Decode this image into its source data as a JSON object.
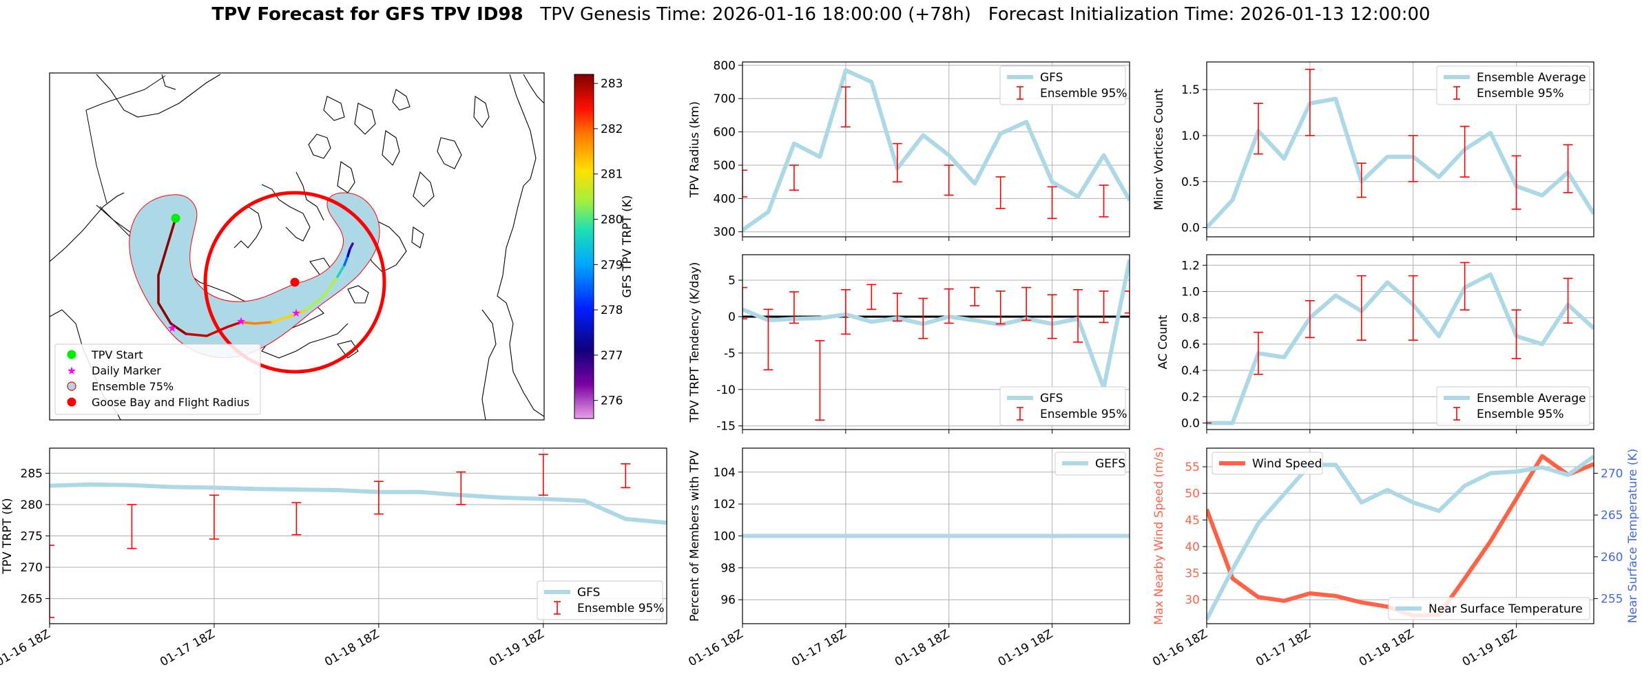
{
  "header": {
    "title_bold": "TPV Forecast for GFS TPV ID98",
    "title_rest": "TPV Genesis Time: 2026-01-16 18:00:00 (+78h)   Forecast Initialization Time: 2026-01-13 12:00:00"
  },
  "colors": {
    "gfs_line": "#add8e6",
    "error_bar": "#ff0000",
    "wind_line": "#ff6347",
    "temp_axis": "#4169e1",
    "grid": "#b0b0b0"
  },
  "x_tick_labels": [
    "01-16 18Z",
    "01-17 18Z",
    "01-18 18Z",
    "01-19 18Z"
  ],
  "map": {
    "colorbar_label": "GFS TPV TRPT (K)",
    "colorbar_ticks": [
      283,
      282,
      281,
      280,
      279,
      278,
      277,
      276
    ],
    "colorbar_range": [
      275.6,
      283.2
    ],
    "legend": [
      "TPV Start",
      "Daily Marker",
      "Ensemble 75%",
      "Goose Bay and Flight Radius"
    ],
    "legend_colors": [
      "#00ee00",
      "#ff00ff",
      "#ffffff",
      "#ff0000"
    ],
    "legend_icons": [
      "dot-marker-icon",
      "star-marker-icon",
      "ring-marker-icon",
      "dot-marker-icon"
    ]
  },
  "chart_data": [
    {
      "id": "radius",
      "type": "line",
      "ylabel": "TPV Radius (km)",
      "ylim": [
        285,
        810
      ],
      "yticks": [
        300,
        400,
        500,
        600,
        700,
        800
      ],
      "legend": [
        "GFS",
        "Ensemble 95%"
      ],
      "legend_pos": "top-right",
      "x": [
        0,
        0.25,
        0.5,
        0.75,
        1,
        1.25,
        1.5,
        1.75,
        2,
        2.25,
        2.5,
        2.75,
        3,
        3.25,
        3.5,
        3.75
      ],
      "series": [
        {
          "name": "GFS",
          "values": [
            305,
            360,
            565,
            525,
            785,
            750,
            490,
            590,
            530,
            445,
            595,
            630,
            450,
            405,
            530,
            395
          ]
        }
      ],
      "errorbars": [
        {
          "x": 0,
          "lo": 405,
          "hi": 485
        },
        {
          "x": 0.5,
          "lo": 425,
          "hi": 500
        },
        {
          "x": 1,
          "lo": 615,
          "hi": 735
        },
        {
          "x": 1.5,
          "lo": 450,
          "hi": 565
        },
        {
          "x": 2,
          "lo": 410,
          "hi": 500
        },
        {
          "x": 2.5,
          "lo": 370,
          "hi": 465
        },
        {
          "x": 3,
          "lo": 340,
          "hi": 435
        },
        {
          "x": 3.5,
          "lo": 345,
          "hi": 440
        }
      ]
    },
    {
      "id": "tendency",
      "type": "line",
      "ylabel": "TPV TRPT Tendency (K/day)",
      "ylim": [
        -15.5,
        8.5
      ],
      "yticks": [
        -15,
        -10,
        -5,
        0,
        5
      ],
      "zero_line": true,
      "legend": [
        "GFS",
        "Ensemble 95%"
      ],
      "legend_pos": "bottom-right",
      "x": [
        0,
        0.25,
        0.5,
        0.75,
        1,
        1.25,
        1.5,
        1.75,
        2,
        2.25,
        2.5,
        2.75,
        3,
        3.25,
        3.5,
        3.75
      ],
      "series": [
        {
          "name": "GFS",
          "values": [
            1,
            -0.5,
            -0.3,
            -0.2,
            0.3,
            -0.7,
            -0.2,
            -1,
            0,
            -0.5,
            -1.1,
            -0.3,
            -1,
            -0.3,
            -9.8,
            7.8
          ]
        }
      ],
      "errorbars": [
        {
          "x": 0,
          "lo": -0.3,
          "hi": 4
        },
        {
          "x": 0.25,
          "lo": -7.3,
          "hi": 1
        },
        {
          "x": 0.5,
          "lo": -0.9,
          "hi": 3.4
        },
        {
          "x": 0.75,
          "lo": -14.2,
          "hi": -3.3
        },
        {
          "x": 1,
          "lo": -2.4,
          "hi": 3.7
        },
        {
          "x": 1.25,
          "lo": 1,
          "hi": 4.4
        },
        {
          "x": 1.5,
          "lo": -0.6,
          "hi": 3.2
        },
        {
          "x": 1.75,
          "lo": -3,
          "hi": 2.5
        },
        {
          "x": 2,
          "lo": -0.9,
          "hi": 3.8
        },
        {
          "x": 2.25,
          "lo": 1.5,
          "hi": 4
        },
        {
          "x": 2.5,
          "lo": -1,
          "hi": 3.5
        },
        {
          "x": 2.75,
          "lo": -0.5,
          "hi": 4
        },
        {
          "x": 3,
          "lo": -3,
          "hi": 3
        },
        {
          "x": 3.25,
          "lo": -3.5,
          "hi": 3.7
        },
        {
          "x": 3.5,
          "lo": -0.8,
          "hi": 3.5
        },
        {
          "x": 3.75,
          "lo": 0.5,
          "hi": 3.5
        }
      ]
    },
    {
      "id": "members",
      "type": "line",
      "ylabel": "Percent of Members with TPV",
      "ylim": [
        94.5,
        105.5
      ],
      "yticks": [
        96,
        98,
        100,
        102,
        104
      ],
      "legend": [
        "GEFS"
      ],
      "legend_pos": "top-right",
      "x": [
        0,
        3.75
      ],
      "series": [
        {
          "name": "GEFS",
          "values": [
            100,
            100
          ]
        }
      ],
      "errorbars": []
    },
    {
      "id": "minor",
      "type": "line",
      "ylabel": "Minor Vortices Count",
      "ylim": [
        -0.1,
        1.8
      ],
      "yticks": [
        0.0,
        0.5,
        1.0,
        1.5
      ],
      "legend": [
        "Ensemble Average",
        "Ensemble 95%"
      ],
      "legend_pos": "top-right",
      "x": [
        0,
        0.25,
        0.5,
        0.75,
        1,
        1.25,
        1.5,
        1.75,
        2,
        2.25,
        2.5,
        2.75,
        3,
        3.25,
        3.5,
        3.75
      ],
      "series": [
        {
          "name": "Ensemble Average",
          "values": [
            0,
            0.3,
            1.05,
            0.75,
            1.35,
            1.4,
            0.5,
            0.77,
            0.77,
            0.55,
            0.85,
            1.03,
            0.45,
            0.35,
            0.6,
            0.15
          ]
        }
      ],
      "errorbars": [
        {
          "x": 0.5,
          "lo": 0.8,
          "hi": 1.35
        },
        {
          "x": 1,
          "lo": 1,
          "hi": 1.72
        },
        {
          "x": 1.5,
          "lo": 0.33,
          "hi": 0.7
        },
        {
          "x": 2,
          "lo": 0.5,
          "hi": 1
        },
        {
          "x": 2.5,
          "lo": 0.55,
          "hi": 1.1
        },
        {
          "x": 3,
          "lo": 0.2,
          "hi": 0.78
        },
        {
          "x": 3.5,
          "lo": 0.38,
          "hi": 0.9
        }
      ]
    },
    {
      "id": "ac",
      "type": "line",
      "ylabel": "AC Count",
      "ylim": [
        -0.05,
        1.28
      ],
      "yticks": [
        0.0,
        0.2,
        0.4,
        0.6,
        0.8,
        1.0,
        1.2
      ],
      "legend": [
        "Ensemble Average",
        "Ensemble 95%"
      ],
      "legend_pos": "bottom-right",
      "x": [
        0,
        0.25,
        0.5,
        0.75,
        1,
        1.25,
        1.5,
        1.75,
        2,
        2.25,
        2.5,
        2.75,
        3,
        3.25,
        3.5,
        3.75
      ],
      "series": [
        {
          "name": "Ensemble Average",
          "values": [
            0,
            0,
            0.53,
            0.5,
            0.8,
            0.97,
            0.85,
            1.07,
            0.9,
            0.66,
            1.03,
            1.13,
            0.66,
            0.6,
            0.9,
            0.72
          ]
        }
      ],
      "errorbars": [
        {
          "x": 0,
          "lo": 0,
          "hi": 0
        },
        {
          "x": 0.5,
          "lo": 0.37,
          "hi": 0.69
        },
        {
          "x": 1,
          "lo": 0.65,
          "hi": 0.93
        },
        {
          "x": 1.5,
          "lo": 0.63,
          "hi": 1.12
        },
        {
          "x": 2,
          "lo": 0.63,
          "hi": 1.12
        },
        {
          "x": 2.5,
          "lo": 0.86,
          "hi": 1.22
        },
        {
          "x": 3,
          "lo": 0.49,
          "hi": 0.86
        },
        {
          "x": 3.5,
          "lo": 0.76,
          "hi": 1.1
        }
      ]
    },
    {
      "id": "trpt",
      "type": "line",
      "ylabel": "TPV TRPT (K)",
      "ylim": [
        261,
        289
      ],
      "yticks": [
        265,
        270,
        275,
        280,
        285
      ],
      "legend": [
        "GFS",
        "Ensemble 95%"
      ],
      "legend_pos": "bottom-right",
      "x": [
        0,
        0.25,
        0.5,
        0.75,
        1,
        1.25,
        1.5,
        1.75,
        2,
        2.25,
        2.5,
        2.75,
        3,
        3.25,
        3.5,
        3.75
      ],
      "series": [
        {
          "name": "GFS",
          "values": [
            283,
            283.2,
            283.1,
            282.8,
            282.7,
            282.5,
            282.4,
            282.3,
            282,
            282,
            281.5,
            281.1,
            280.9,
            280.6,
            277.7,
            277.1
          ]
        }
      ],
      "errorbars": [
        {
          "x": 0,
          "lo": 262,
          "hi": 273.5
        },
        {
          "x": 0.5,
          "lo": 273,
          "hi": 280
        },
        {
          "x": 1,
          "lo": 274.5,
          "hi": 281.5
        },
        {
          "x": 1.5,
          "lo": 275.2,
          "hi": 280.3
        },
        {
          "x": 2,
          "lo": 278.5,
          "hi": 283.7
        },
        {
          "x": 2.5,
          "lo": 280,
          "hi": 285.2
        },
        {
          "x": 3,
          "lo": 281.5,
          "hi": 288
        },
        {
          "x": 3.5,
          "lo": 282.7,
          "hi": 286.5
        }
      ]
    },
    {
      "id": "wind_temp",
      "type": "line",
      "ylabel": "Max Nearby Wind Speed (m/s)",
      "ylabel_right": "Near Surface Temperature (K)",
      "ylim": [
        25.5,
        58.5
      ],
      "yticks": [
        30,
        35,
        40,
        45,
        50,
        55
      ],
      "ylim_right": [
        252,
        273
      ],
      "yticks_right": [
        255,
        260,
        265,
        270
      ],
      "legend": [
        "Wind Speed"
      ],
      "legend_right": [
        "Near Surface Temperature"
      ],
      "x": [
        0,
        0.25,
        0.5,
        0.75,
        1,
        1.25,
        1.5,
        1.75,
        2,
        2.25,
        2.5,
        2.75,
        3,
        3.25,
        3.5,
        3.75
      ],
      "series": [
        {
          "name": "Wind Speed",
          "values": [
            47,
            34,
            30.5,
            29.8,
            31.2,
            30.7,
            29.5,
            28.7,
            27,
            27.2,
            34,
            41,
            49,
            57,
            53.5,
            55.5
          ]
        },
        {
          "name": "Near Surface Temperature",
          "values": [
            252.5,
            258.5,
            264,
            267.5,
            271,
            271,
            266.5,
            268,
            266.5,
            265.5,
            268.5,
            270,
            270.2,
            270.7,
            269.8,
            272
          ]
        }
      ]
    }
  ]
}
